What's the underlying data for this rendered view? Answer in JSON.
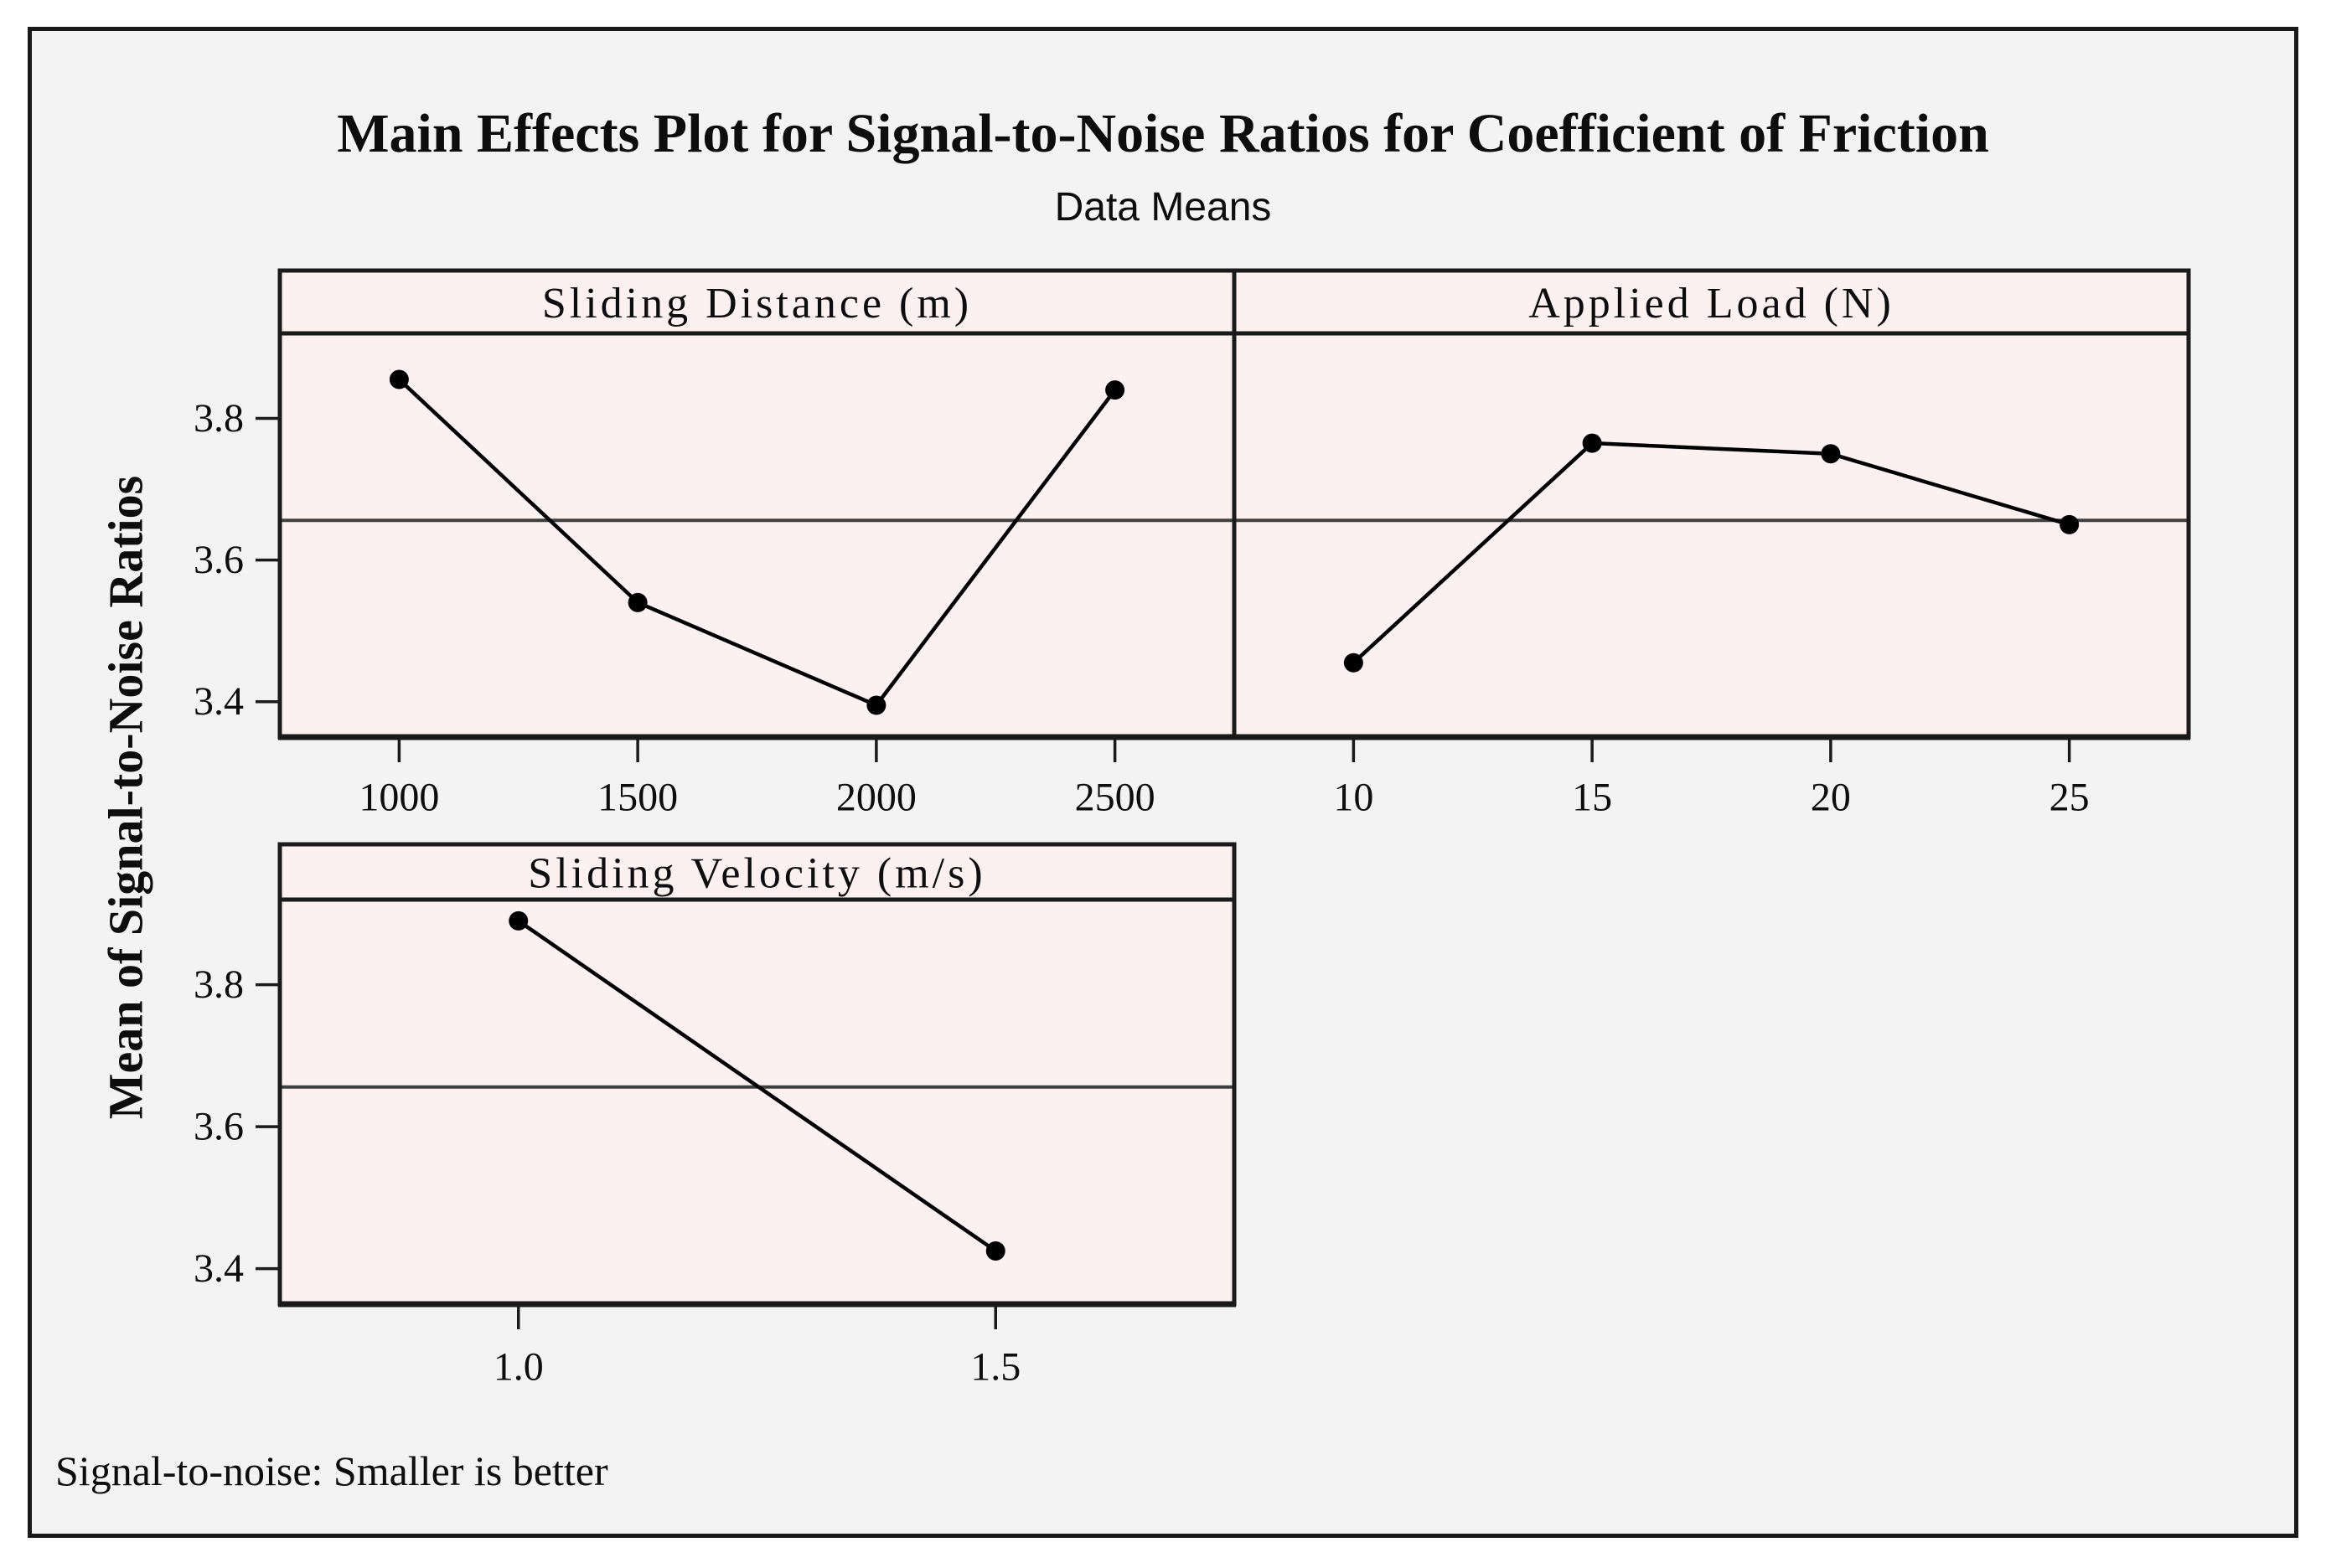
{
  "figure": {
    "title": "Main Effects Plot for Signal-to-Noise Ratios for Coefficient of Friction",
    "subtitle": "Data Means",
    "ylabel": "Mean of Signal-to-Noise Ratios",
    "footer": "Signal-to-noise: Smaller is better"
  },
  "chart_data": {
    "type": "line",
    "title": "Main Effects Plot for Signal-to-Noise Ratios for Coefficient of Friction",
    "subtitle": "Data Means",
    "ylabel": "Mean of Signal-to-Noise Ratios",
    "footnote": "Signal-to-noise: Smaller is better",
    "grid": false,
    "legend": "none",
    "ylim": [
      3.35,
      3.92
    ],
    "yticks": [
      3.8,
      3.6,
      3.4
    ],
    "ytick_labels": [
      "3.8",
      "3.6",
      "3.4"
    ],
    "mean_line": 3.656,
    "marker": "filled-circle",
    "panels": [
      {
        "title": "Sliding Distance (m)",
        "row": "top",
        "col": "left",
        "show_y_axis": true,
        "categories": [
          "1000",
          "1500",
          "2000",
          "2500"
        ],
        "values": [
          3.855,
          3.54,
          3.395,
          3.84
        ]
      },
      {
        "title": "Applied Load (N)",
        "row": "top",
        "col": "right",
        "show_y_axis": false,
        "categories": [
          "10",
          "15",
          "20",
          "25"
        ],
        "values": [
          3.455,
          3.765,
          3.75,
          3.65
        ]
      },
      {
        "title": "Sliding Velocity (m/s)",
        "row": "bottom",
        "col": "left",
        "show_y_axis": true,
        "categories": [
          "1.0",
          "1.5"
        ],
        "values": [
          3.89,
          3.425
        ]
      }
    ],
    "colors": {
      "page_bg": "#ffffff",
      "figure_bg": "#f2f3f2",
      "panel_fill": "#fdf0f1",
      "frame": "#1a1a1a",
      "series_line": "#000000",
      "marker": "#000000",
      "mean_line": "#3f3f3f",
      "text": "#0d0d0d"
    }
  }
}
